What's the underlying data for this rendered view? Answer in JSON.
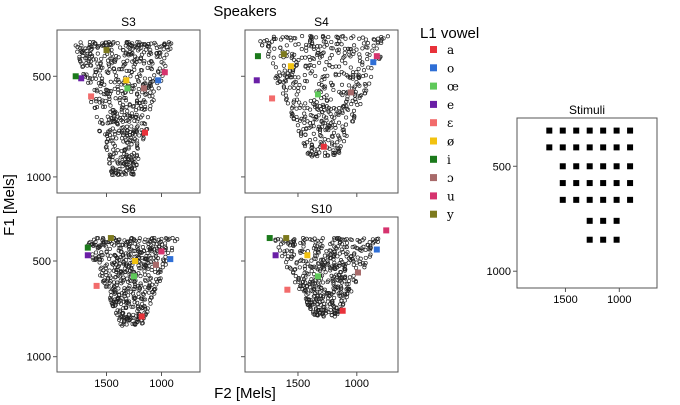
{
  "figure": {
    "title": "Speakers",
    "xlabel": "F2 [Mels]",
    "ylabel": "F1 [Mels]"
  },
  "legend": {
    "title": "L1 vowel",
    "items": [
      {
        "label": "a",
        "color": "#e8323a"
      },
      {
        "label": "o",
        "color": "#2f6fd6"
      },
      {
        "label": "œ",
        "color": "#5fc95a"
      },
      {
        "label": "e",
        "color": "#6a1fa6"
      },
      {
        "label": "ε",
        "color": "#f26b6b"
      },
      {
        "label": "ø",
        "color": "#f2c20f"
      },
      {
        "label": "i",
        "color": "#1b7a1b"
      },
      {
        "label": "ɔ",
        "color": "#a86a6a"
      },
      {
        "label": "u",
        "color": "#d6336e"
      },
      {
        "label": "y",
        "color": "#7d7a1e"
      }
    ]
  },
  "chart_data": [
    {
      "type": "scatter",
      "title": "S3",
      "x_reversed": true,
      "y_reversed": true,
      "xlim": [
        1950,
        650
      ],
      "ylim": [
        270,
        1080
      ],
      "x_ticks": [
        1500,
        1000
      ],
      "y_ticks": [
        500,
        1000
      ],
      "x_tick_labels_shown": false,
      "y_tick_labels_shown": true,
      "cloud": {
        "x_range": [
          1800,
          900
        ],
        "y_range": [
          330,
          990
        ],
        "points": 620
      },
      "vowel_means": [
        {
          "vowel": "a",
          "x": 1150,
          "y": 780
        },
        {
          "vowel": "o",
          "x": 1030,
          "y": 520
        },
        {
          "vowel": "œ",
          "x": 1310,
          "y": 560
        },
        {
          "vowel": "e",
          "x": 1730,
          "y": 510
        },
        {
          "vowel": "ε",
          "x": 1640,
          "y": 600
        },
        {
          "vowel": "ø",
          "x": 1320,
          "y": 520
        },
        {
          "vowel": "i",
          "x": 1780,
          "y": 500
        },
        {
          "vowel": "ɔ",
          "x": 1160,
          "y": 560
        },
        {
          "vowel": "u",
          "x": 970,
          "y": 480
        },
        {
          "vowel": "y",
          "x": 1500,
          "y": 370
        }
      ]
    },
    {
      "type": "scatter",
      "title": "S4",
      "x_reversed": true,
      "y_reversed": true,
      "xlim": [
        1950,
        650
      ],
      "ylim": [
        270,
        1080
      ],
      "x_ticks": [
        1500,
        1000
      ],
      "y_ticks": [
        500,
        1000
      ],
      "x_tick_labels_shown": false,
      "y_tick_labels_shown": false,
      "cloud": {
        "x_range": [
          1850,
          720
        ],
        "y_range": [
          300,
          900
        ],
        "points": 520
      },
      "vowel_means": [
        {
          "vowel": "a",
          "x": 1280,
          "y": 850
        },
        {
          "vowel": "o",
          "x": 860,
          "y": 430
        },
        {
          "vowel": "œ",
          "x": 1330,
          "y": 590
        },
        {
          "vowel": "e",
          "x": 1850,
          "y": 520
        },
        {
          "vowel": "ε",
          "x": 1720,
          "y": 610
        },
        {
          "vowel": "ø",
          "x": 1560,
          "y": 450
        },
        {
          "vowel": "i",
          "x": 1840,
          "y": 400
        },
        {
          "vowel": "ɔ",
          "x": 1050,
          "y": 580
        },
        {
          "vowel": "u",
          "x": 830,
          "y": 400
        },
        {
          "vowel": "y",
          "x": 1620,
          "y": 390
        }
      ]
    },
    {
      "type": "scatter",
      "title": "S6",
      "x_reversed": true,
      "y_reversed": true,
      "xlim": [
        1950,
        650
      ],
      "ylim": [
        270,
        1080
      ],
      "x_ticks": [
        1500,
        1000
      ],
      "y_ticks": [
        500,
        1000
      ],
      "x_tick_labels_shown": true,
      "y_tick_labels_shown": true,
      "cloud": {
        "x_range": [
          1700,
          850
        ],
        "y_range": [
          380,
          840
        ],
        "points": 520
      },
      "vowel_means": [
        {
          "vowel": "a",
          "x": 1180,
          "y": 790
        },
        {
          "vowel": "o",
          "x": 920,
          "y": 490
        },
        {
          "vowel": "œ",
          "x": 1250,
          "y": 580
        },
        {
          "vowel": "e",
          "x": 1670,
          "y": 470
        },
        {
          "vowel": "ε",
          "x": 1590,
          "y": 630
        },
        {
          "vowel": "ø",
          "x": 1240,
          "y": 500
        },
        {
          "vowel": "i",
          "x": 1670,
          "y": 430
        },
        {
          "vowel": "ɔ",
          "x": 1050,
          "y": 520
        },
        {
          "vowel": "u",
          "x": 1000,
          "y": 450
        },
        {
          "vowel": "y",
          "x": 1460,
          "y": 380
        }
      ]
    },
    {
      "type": "scatter",
      "title": "S10",
      "x_reversed": true,
      "y_reversed": true,
      "xlim": [
        1950,
        650
      ],
      "ylim": [
        270,
        1080
      ],
      "x_ticks": [
        1500,
        1000
      ],
      "y_ticks": [
        500,
        1000
      ],
      "x_tick_labels_shown": true,
      "y_tick_labels_shown": false,
      "cloud": {
        "x_range": [
          1730,
          800
        ],
        "y_range": [
          380,
          790
        ],
        "points": 480
      },
      "vowel_means": [
        {
          "vowel": "a",
          "x": 1120,
          "y": 760
        },
        {
          "vowel": "o",
          "x": 830,
          "y": 440
        },
        {
          "vowel": "œ",
          "x": 1330,
          "y": 580
        },
        {
          "vowel": "e",
          "x": 1690,
          "y": 470
        },
        {
          "vowel": "ε",
          "x": 1590,
          "y": 650
        },
        {
          "vowel": "ø",
          "x": 1420,
          "y": 470
        },
        {
          "vowel": "i",
          "x": 1740,
          "y": 380
        },
        {
          "vowel": "ɔ",
          "x": 990,
          "y": 560
        },
        {
          "vowel": "u",
          "x": 750,
          "y": 340
        },
        {
          "vowel": "y",
          "x": 1600,
          "y": 380
        }
      ]
    },
    {
      "type": "scatter",
      "title": "Stimuli",
      "x_reversed": true,
      "y_reversed": true,
      "xlim": [
        1950,
        650
      ],
      "ylim": [
        270,
        1080
      ],
      "x_ticks": [
        1500,
        1000
      ],
      "y_ticks": [
        500,
        1000
      ],
      "x_tick_labels_shown": true,
      "y_tick_labels_shown": true,
      "rows": [
        {
          "y": 330,
          "x": [
            1650,
            1525,
            1400,
            1275,
            1150,
            1025,
            900
          ]
        },
        {
          "y": 410,
          "x": [
            1650,
            1525,
            1400,
            1275,
            1150,
            1025,
            900
          ]
        },
        {
          "y": 500,
          "x": [
            1525,
            1400,
            1275,
            1150,
            1025,
            900
          ]
        },
        {
          "y": 580,
          "x": [
            1525,
            1400,
            1275,
            1150,
            1025,
            900
          ]
        },
        {
          "y": 660,
          "x": [
            1525,
            1400,
            1275,
            1150,
            1025,
            900
          ]
        },
        {
          "y": 760,
          "x": [
            1275,
            1150,
            1025
          ]
        },
        {
          "y": 850,
          "x": [
            1275,
            1150,
            1025
          ]
        }
      ]
    }
  ]
}
